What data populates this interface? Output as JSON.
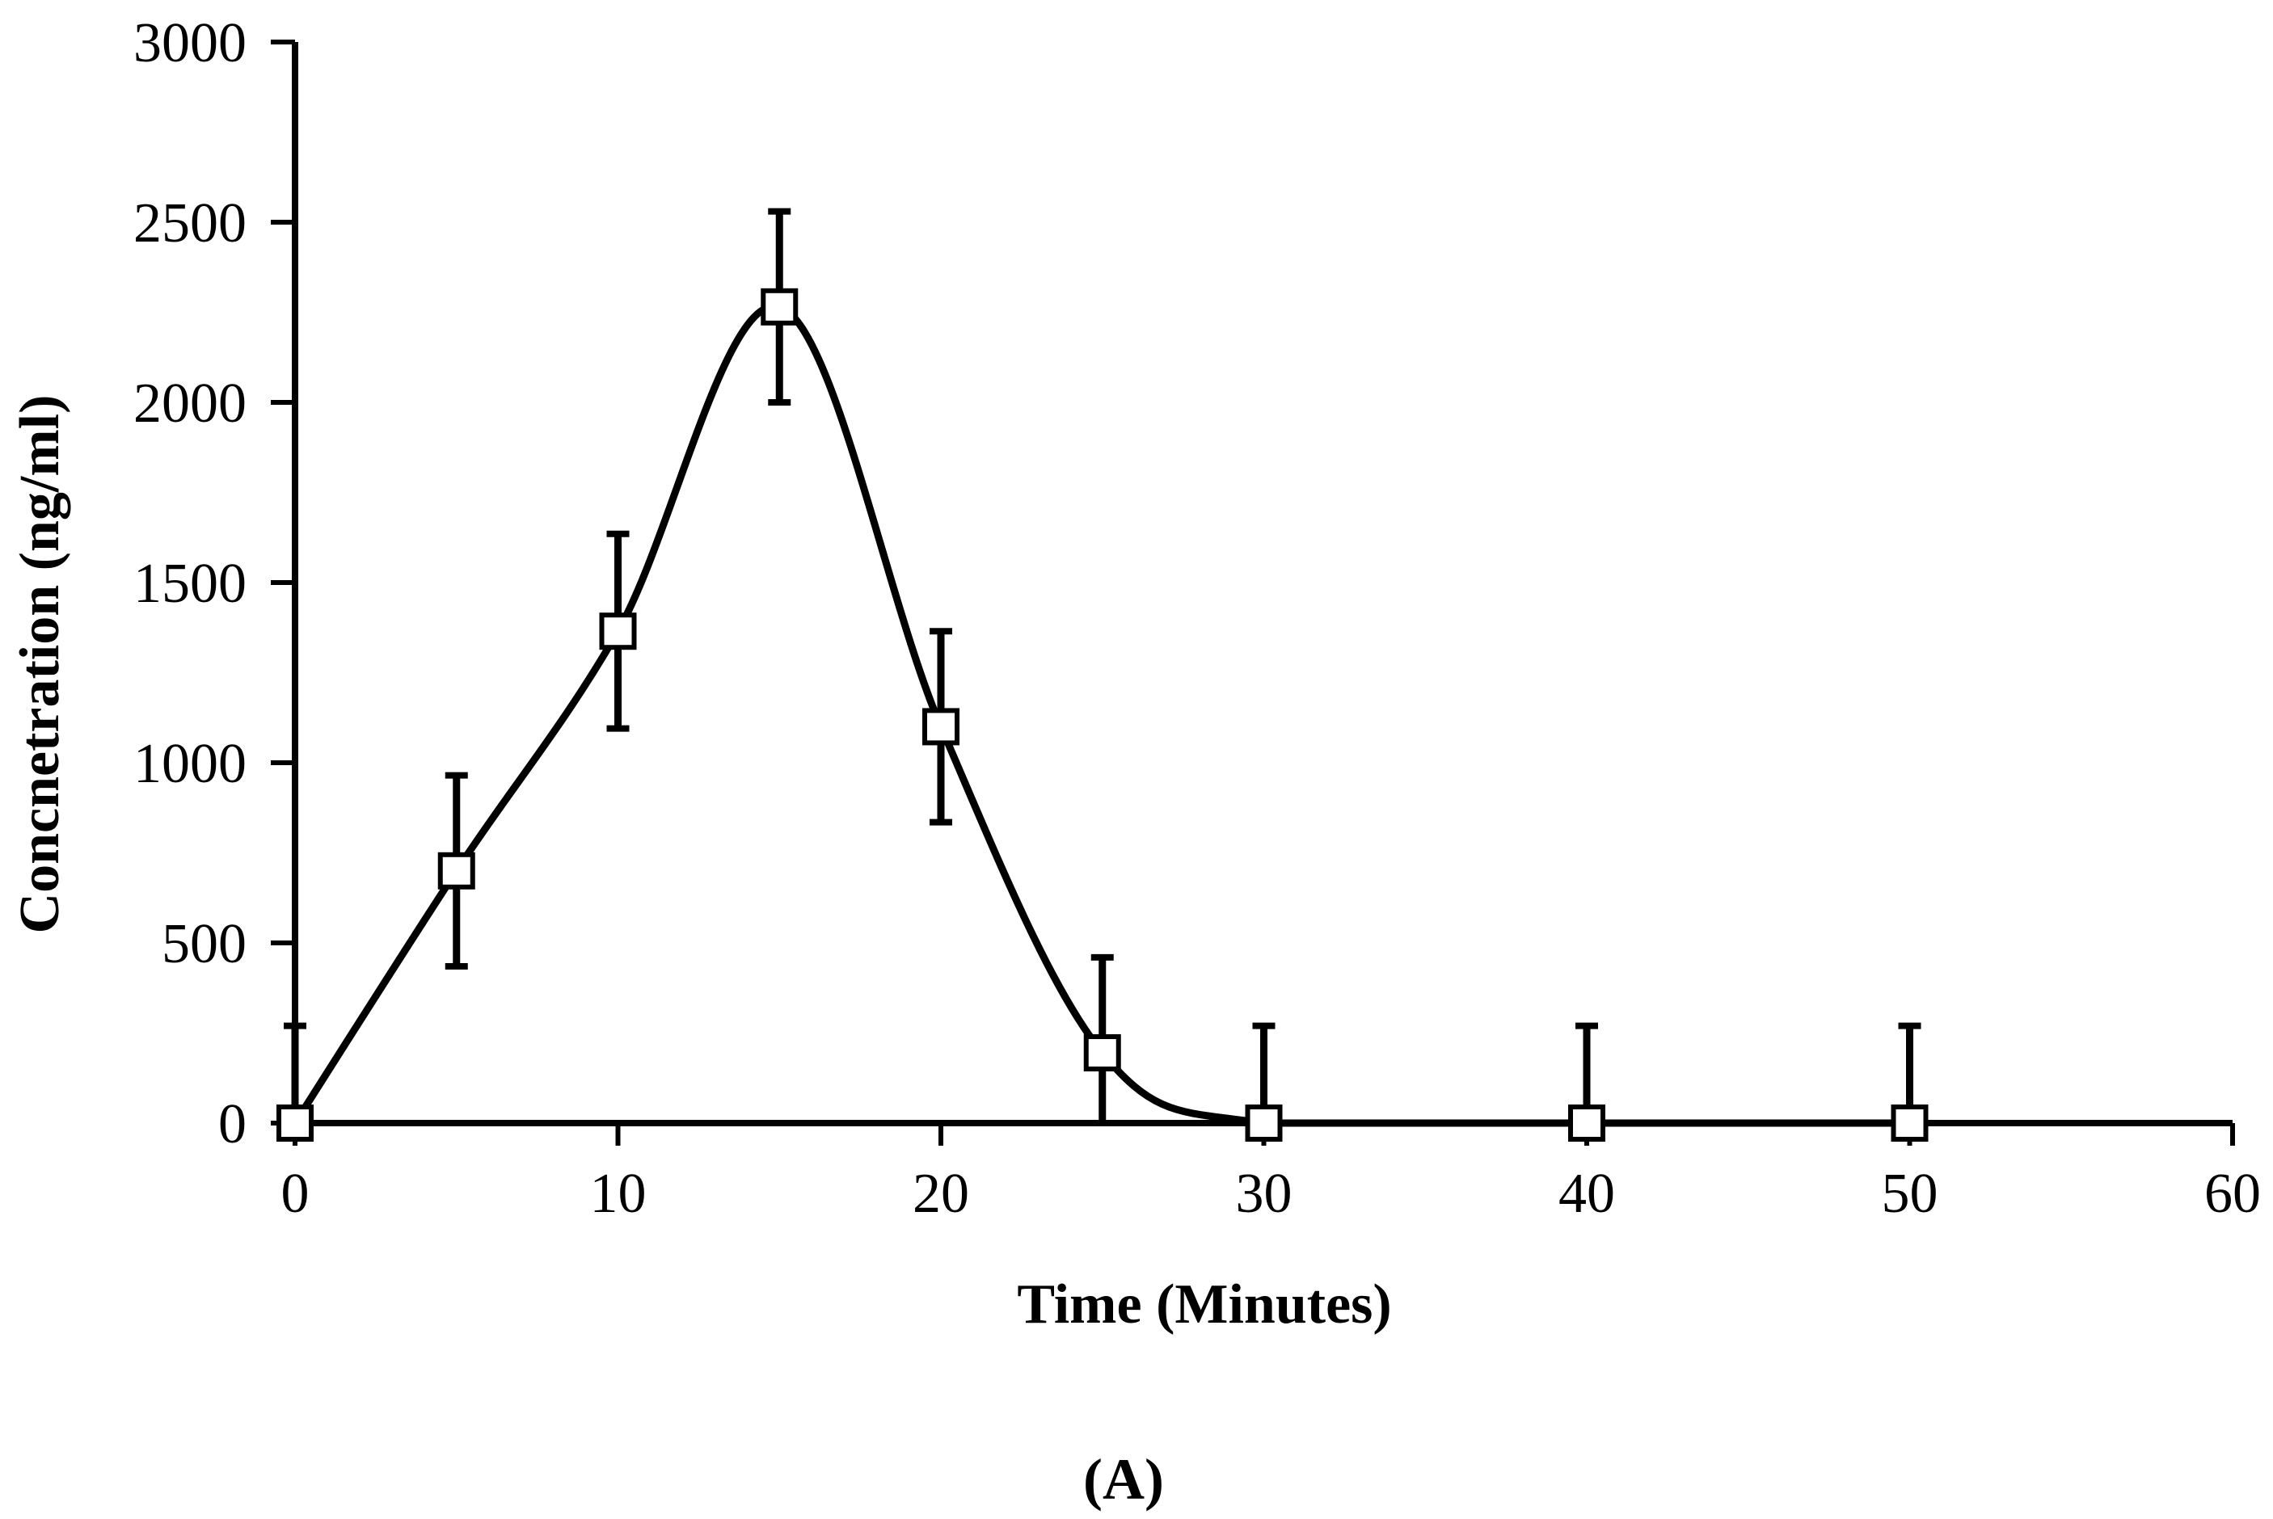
{
  "colors": {
    "ink": "#000000",
    "background": "#ffffff",
    "marker_fill": "#ffffff"
  },
  "chart_data": {
    "type": "line",
    "title": "",
    "xlabel": "Time (Minutes)",
    "ylabel": "Concnetration (ng/ml)",
    "panel_label": "(A)",
    "xlim": [
      0,
      60
    ],
    "ylim": [
      0,
      3000
    ],
    "x_ticks": [
      0,
      10,
      20,
      30,
      40,
      50,
      60
    ],
    "y_ticks": [
      0,
      500,
      1000,
      1500,
      2000,
      2500,
      3000
    ],
    "grid": false,
    "legend": "none",
    "marker": "open-square",
    "smooth": true,
    "series": [
      {
        "name": "Concentration",
        "x": [
          0,
          5,
          10,
          15,
          20,
          25,
          30,
          40,
          50
        ],
        "y": [
          0,
          700,
          1365,
          2265,
          1100,
          195,
          0,
          0,
          0
        ],
        "error": [
          270,
          265,
          270,
          265,
          265,
          265,
          270,
          270,
          270
        ]
      }
    ]
  }
}
